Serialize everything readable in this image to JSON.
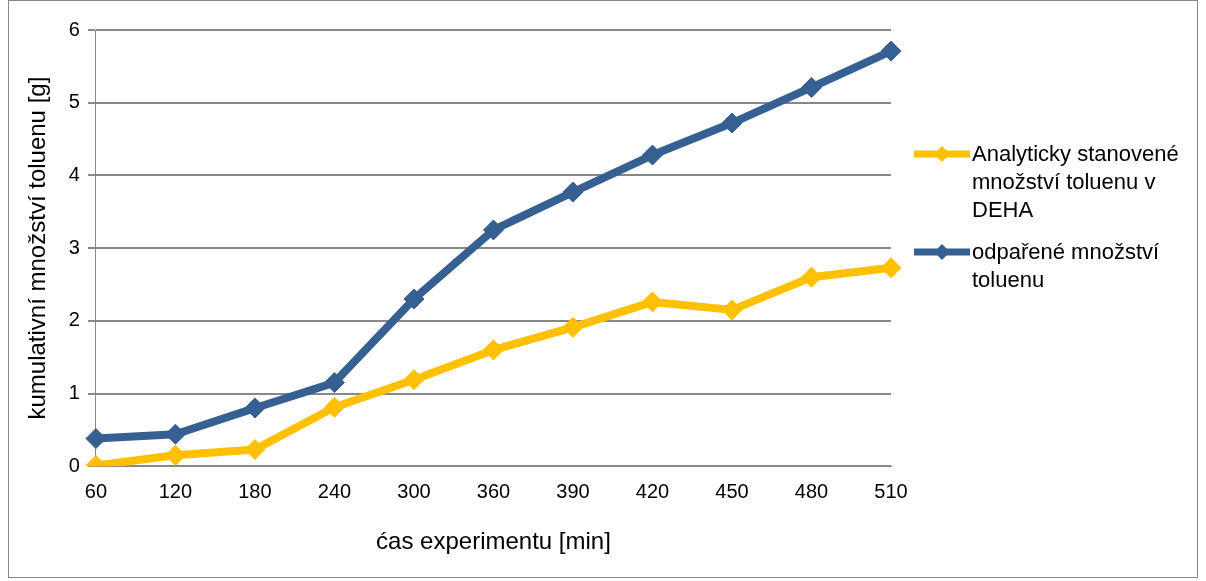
{
  "chart_data": {
    "type": "line",
    "xlabel": "ćas experimentu [min]",
    "ylabel": "kumulativní množství toluenu [g]",
    "categories": [
      "60",
      "120",
      "180",
      "240",
      "300",
      "360",
      "390",
      "420",
      "450",
      "480",
      "510"
    ],
    "series": [
      {
        "name": "Analyticky stanovené množství toluenu v DEHA",
        "color": "#ffc000",
        "values": [
          0.01,
          0.15,
          0.23,
          0.81,
          1.19,
          1.6,
          1.91,
          2.26,
          2.15,
          2.6,
          2.73
        ]
      },
      {
        "name": "odpařené množství toluenu",
        "color": "#376092",
        "values": [
          0.38,
          0.44,
          0.8,
          1.15,
          2.3,
          3.25,
          3.77,
          4.28,
          4.72,
          5.21,
          5.71
        ]
      }
    ],
    "ylim": [
      0,
      6
    ],
    "yticks": [
      0,
      1,
      2,
      3,
      4,
      5,
      6
    ],
    "grid": "y",
    "legend": "right",
    "marker": "diamond",
    "line_style": "solid"
  }
}
